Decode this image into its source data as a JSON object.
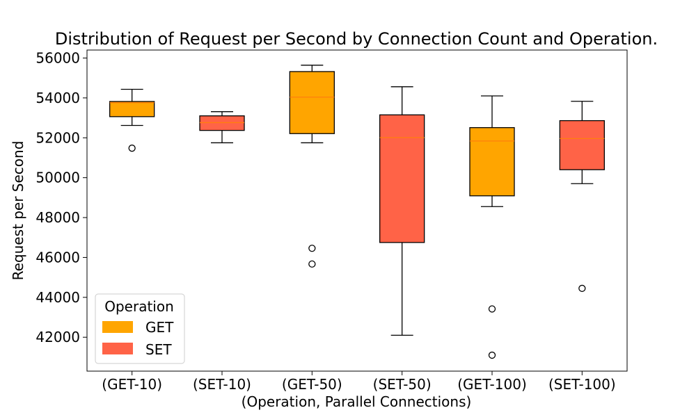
{
  "chart_data": {
    "type": "box",
    "title": "Distribution of Request per Second by Connection Count and Operation.",
    "xlabel": "(Operation, Parallel Connections)",
    "ylabel": "Request per Second",
    "ylim": [
      40300,
      56400
    ],
    "yticks": [
      42000,
      44000,
      46000,
      48000,
      50000,
      52000,
      54000,
      56000
    ],
    "ytick_labels": [
      "42000",
      "44000",
      "46000",
      "48000",
      "50000",
      "52000",
      "54000",
      "56000"
    ],
    "grid": false,
    "categories": [
      "(GET-10)",
      "(SET-10)",
      "(GET-50)",
      "(SET-50)",
      "(GET-100)",
      "(SET-100)"
    ],
    "boxes": [
      {
        "category": "(GET-10)",
        "operation": "GET",
        "whisker_low": 52620,
        "q1": 53060,
        "median": 53760,
        "q3": 53820,
        "whisker_high": 54430,
        "outliers": [
          51480
        ]
      },
      {
        "category": "(SET-10)",
        "operation": "SET",
        "whisker_low": 51750,
        "q1": 52370,
        "median": 52760,
        "q3": 53100,
        "whisker_high": 53310,
        "outliers": []
      },
      {
        "category": "(GET-50)",
        "operation": "GET",
        "whisker_low": 51750,
        "q1": 52210,
        "median": 54040,
        "q3": 55320,
        "whisker_high": 55640,
        "outliers": [
          46460,
          45670
        ]
      },
      {
        "category": "(SET-50)",
        "operation": "SET",
        "whisker_low": 42100,
        "q1": 46750,
        "median": 52010,
        "q3": 53150,
        "whisker_high": 54560,
        "outliers": []
      },
      {
        "category": "(GET-100)",
        "operation": "GET",
        "whisker_low": 48550,
        "q1": 49090,
        "median": 51840,
        "q3": 52510,
        "whisker_high": 54100,
        "outliers": [
          43420,
          41100
        ]
      },
      {
        "category": "(SET-100)",
        "operation": "SET",
        "whisker_low": 49700,
        "q1": 50400,
        "median": 51960,
        "q3": 52860,
        "whisker_high": 53830,
        "outliers": [
          44450
        ]
      }
    ],
    "legend": {
      "title": "Operation",
      "placement": "lower-left",
      "entries": [
        {
          "label": "GET",
          "color": "#FFA500"
        },
        {
          "label": "SET",
          "color": "#FF6347"
        }
      ]
    },
    "colors": {
      "GET": "#FFA500",
      "SET": "#FF6347",
      "median": "#FF7F0E",
      "stroke": "#000000"
    }
  }
}
